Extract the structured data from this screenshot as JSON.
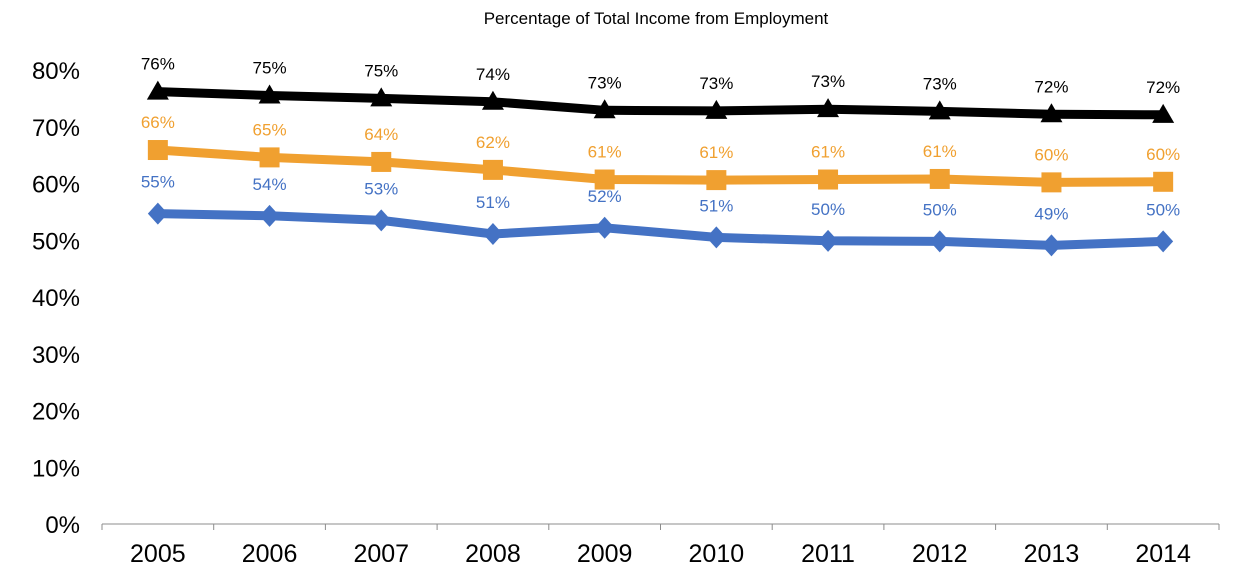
{
  "chart_data": {
    "type": "line",
    "title": "Percentage of Total Income from Employment",
    "xlabel": "",
    "ylabel": "",
    "x": [
      "2005",
      "2006",
      "2007",
      "2008",
      "2009",
      "2010",
      "2011",
      "2012",
      "2013",
      "2014"
    ],
    "ylim": [
      0,
      80
    ],
    "yticks": [
      0,
      10,
      20,
      30,
      40,
      50,
      60,
      70,
      80
    ],
    "ytick_labels": [
      "0%",
      "10%",
      "20%",
      "30%",
      "40%",
      "50%",
      "60%",
      "70%",
      "80%"
    ],
    "grid": false,
    "legend": "none",
    "series": [
      {
        "color": "#000000",
        "marker": "triangle",
        "values": [
          76.2,
          75.5,
          75.0,
          74.4,
          72.9,
          72.8,
          73.1,
          72.7,
          72.2,
          72.1
        ],
        "labels": [
          "76%",
          "75%",
          "75%",
          "74%",
          "73%",
          "73%",
          "73%",
          "73%",
          "72%",
          "72%"
        ]
      },
      {
        "color": "#F0A030",
        "marker": "square",
        "values": [
          65.9,
          64.6,
          63.8,
          62.4,
          60.7,
          60.6,
          60.7,
          60.8,
          60.2,
          60.3
        ],
        "labels": [
          "66%",
          "65%",
          "64%",
          "62%",
          "61%",
          "61%",
          "61%",
          "61%",
          "60%",
          "60%"
        ]
      },
      {
        "color": "#4472C4",
        "marker": "diamond",
        "values": [
          54.7,
          54.3,
          53.5,
          51.1,
          52.2,
          50.5,
          49.9,
          49.8,
          49.1,
          49.8
        ],
        "labels": [
          "55%",
          "54%",
          "53%",
          "51%",
          "52%",
          "51%",
          "50%",
          "50%",
          "49%",
          "50%"
        ]
      }
    ]
  }
}
